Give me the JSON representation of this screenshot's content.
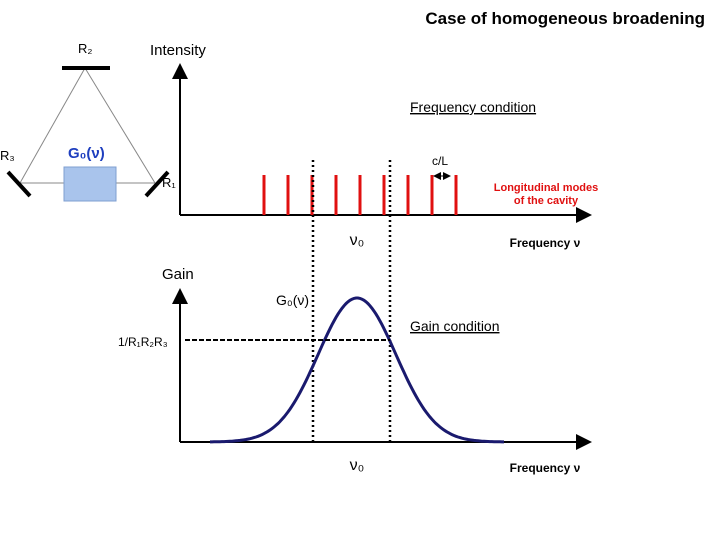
{
  "title": "Case of homogeneous broadening",
  "cavity": {
    "mirror_top": "R₂",
    "mirror_left": "R₃",
    "mirror_right": "R₁",
    "gain_medium": "G₀(ν)"
  },
  "intensity_plot": {
    "y_label": "Intensity",
    "heading": "Frequency condition",
    "spacing": "c/L",
    "modes_note": [
      "Longitudinal modes",
      "of the cavity"
    ],
    "center": "ν₀",
    "x_label": "Frequency ν"
  },
  "gain_plot": {
    "y_label": "Gain",
    "curve_label": "G₀(ν)",
    "heading": "Gain condition",
    "threshold": "1/R₁R₂R₃",
    "center": "ν₀",
    "x_label": "Frequency ν"
  }
}
